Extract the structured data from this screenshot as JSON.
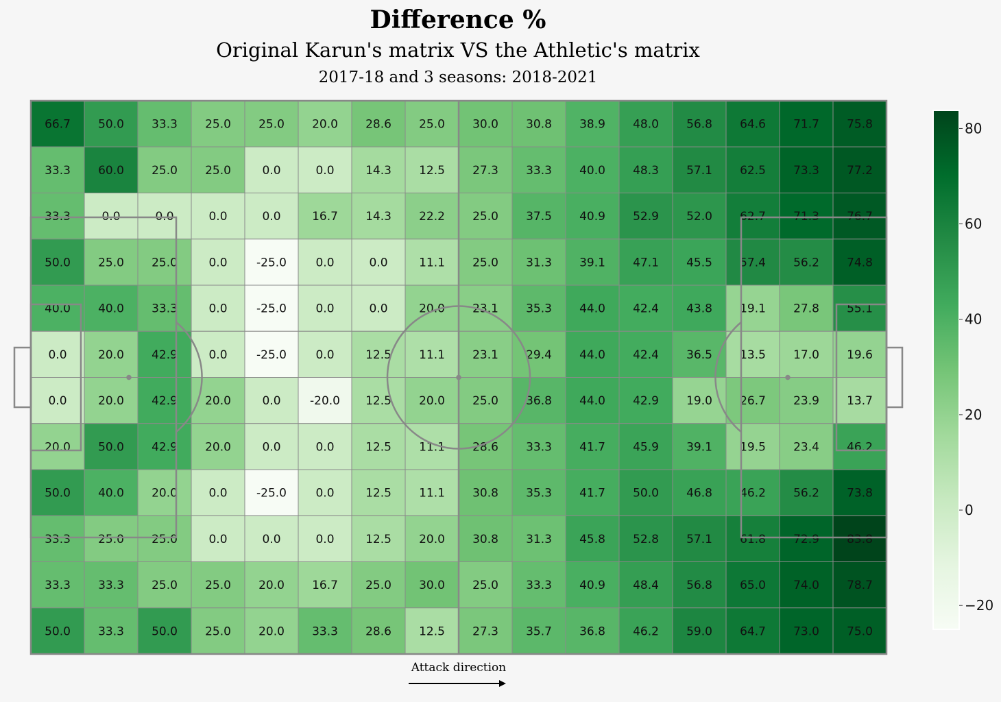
{
  "header": {
    "title": "Difference %",
    "subtitle": "Original Karun's matrix VS the Athletic's matrix",
    "subsubtitle": "2017-18 and 3 seasons: 2018-2021"
  },
  "footer": {
    "attack_label": "Attack direction"
  },
  "colors": {
    "background": "#f6f6f6",
    "pitch_lines": "#888888",
    "colormap_low": "#f7fcf5",
    "colormap_high": "#00441b"
  },
  "chart_data": {
    "type": "heatmap",
    "title": "Difference %",
    "subtitle": "Original Karun's matrix VS the Athletic's matrix",
    "rows": 12,
    "cols": 16,
    "vmin": -25,
    "vmax": 83.8,
    "colorbar_ticks": [
      80,
      60,
      40,
      20,
      0,
      -20
    ],
    "values": [
      [
        66.7,
        50.0,
        33.3,
        25.0,
        25.0,
        20.0,
        28.6,
        25.0,
        30.0,
        30.8,
        38.9,
        48.0,
        56.8,
        64.6,
        71.7,
        75.8
      ],
      [
        33.3,
        60.0,
        25.0,
        25.0,
        0.0,
        0.0,
        14.3,
        12.5,
        27.3,
        33.3,
        40.0,
        48.3,
        57.1,
        62.5,
        73.3,
        77.2
      ],
      [
        33.3,
        0.0,
        0.0,
        0.0,
        0.0,
        16.7,
        14.3,
        22.2,
        25.0,
        37.5,
        40.9,
        52.9,
        52.0,
        62.7,
        71.3,
        76.7
      ],
      [
        50.0,
        25.0,
        25.0,
        0.0,
        -25.0,
        0.0,
        0.0,
        11.1,
        25.0,
        31.3,
        39.1,
        47.1,
        45.5,
        57.4,
        56.2,
        74.8
      ],
      [
        40.0,
        40.0,
        33.3,
        0.0,
        -25.0,
        0.0,
        0.0,
        20.0,
        23.1,
        35.3,
        44.0,
        42.4,
        43.8,
        19.1,
        27.8,
        55.1
      ],
      [
        0.0,
        20.0,
        42.9,
        0.0,
        -25.0,
        0.0,
        12.5,
        11.1,
        23.1,
        29.4,
        44.0,
        42.4,
        36.5,
        13.5,
        17.0,
        19.6
      ],
      [
        0.0,
        20.0,
        42.9,
        20.0,
        0.0,
        -20.0,
        12.5,
        20.0,
        25.0,
        36.8,
        44.0,
        42.9,
        19.0,
        26.7,
        23.9,
        13.7
      ],
      [
        20.0,
        50.0,
        42.9,
        20.0,
        0.0,
        0.0,
        12.5,
        11.1,
        28.6,
        33.3,
        41.7,
        45.9,
        39.1,
        19.5,
        23.4,
        46.2
      ],
      [
        50.0,
        40.0,
        20.0,
        0.0,
        -25.0,
        0.0,
        12.5,
        11.1,
        30.8,
        35.3,
        41.7,
        50.0,
        46.8,
        46.2,
        56.2,
        73.8
      ],
      [
        33.3,
        25.0,
        25.0,
        0.0,
        0.0,
        0.0,
        12.5,
        20.0,
        30.8,
        31.3,
        45.8,
        52.8,
        57.1,
        61.8,
        72.9,
        83.8
      ],
      [
        33.3,
        33.3,
        25.0,
        25.0,
        20.0,
        16.7,
        25.0,
        30.0,
        25.0,
        33.3,
        40.9,
        48.4,
        56.8,
        65.0,
        74.0,
        78.7
      ],
      [
        50.0,
        33.3,
        50.0,
        25.0,
        20.0,
        33.3,
        28.6,
        12.5,
        27.3,
        35.7,
        36.8,
        46.2,
        59.0,
        64.7,
        73.0,
        75.0
      ]
    ]
  }
}
